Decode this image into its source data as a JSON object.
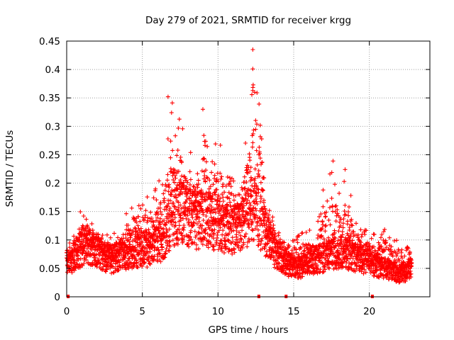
{
  "chart_data": {
    "type": "scatter",
    "title": "Day 279 of 2021, SRMTID for receiver krgg",
    "xlabel": "GPS time / hours",
    "ylabel": "SRMTID / TECUs",
    "xlim": [
      0,
      24
    ],
    "ylim": [
      0,
      0.45
    ],
    "xticks": [
      0,
      5,
      10,
      15,
      20
    ],
    "xtick_labels": [
      "0",
      "5",
      "10",
      "15",
      "20"
    ],
    "yticks": [
      0,
      0.05,
      0.1,
      0.15,
      0.2,
      0.25,
      0.3,
      0.35,
      0.4,
      0.45
    ],
    "ytick_labels": [
      "0",
      "0.05",
      "0.1",
      "0.15",
      "0.2",
      "0.25",
      "0.3",
      "0.35",
      "0.4",
      "0.45"
    ],
    "grid": true,
    "marker": "plus",
    "color": "#ff0000",
    "approximate_trend": {
      "description": "dense per-satellite SRMTID samples; estimated median level and upper envelope vs time",
      "x": [
        0.0,
        0.5,
        1.0,
        1.5,
        2.0,
        2.5,
        3.0,
        3.5,
        4.0,
        4.5,
        5.0,
        5.5,
        6.0,
        6.5,
        7.0,
        7.5,
        8.0,
        8.5,
        9.0,
        9.5,
        10.0,
        10.5,
        11.0,
        11.5,
        12.0,
        12.5,
        13.0,
        13.5,
        14.0,
        14.5,
        15.0,
        15.5,
        16.0,
        16.5,
        17.0,
        17.5,
        18.0,
        18.5,
        19.0,
        19.5,
        20.0,
        20.5,
        21.0,
        21.5,
        22.0,
        22.5,
        22.8
      ],
      "median": [
        0.06,
        0.07,
        0.085,
        0.09,
        0.08,
        0.07,
        0.065,
        0.07,
        0.075,
        0.08,
        0.085,
        0.08,
        0.09,
        0.11,
        0.14,
        0.15,
        0.14,
        0.13,
        0.14,
        0.13,
        0.13,
        0.12,
        0.12,
        0.12,
        0.14,
        0.15,
        0.12,
        0.09,
        0.07,
        0.06,
        0.05,
        0.05,
        0.06,
        0.065,
        0.07,
        0.075,
        0.08,
        0.075,
        0.07,
        0.065,
        0.06,
        0.055,
        0.05,
        0.045,
        0.04,
        0.045,
        0.05
      ],
      "envelope": [
        0.09,
        0.11,
        0.16,
        0.13,
        0.13,
        0.11,
        0.11,
        0.12,
        0.15,
        0.19,
        0.17,
        0.18,
        0.2,
        0.26,
        0.35,
        0.32,
        0.26,
        0.25,
        0.33,
        0.25,
        0.29,
        0.25,
        0.21,
        0.19,
        0.32,
        0.435,
        0.25,
        0.16,
        0.12,
        0.1,
        0.1,
        0.12,
        0.12,
        0.12,
        0.2,
        0.24,
        0.2,
        0.22,
        0.15,
        0.12,
        0.12,
        0.11,
        0.14,
        0.1,
        0.1,
        0.09,
        0.08
      ],
      "notable_points": [
        {
          "x": 12.3,
          "y": 0.435
        },
        {
          "x": 12.3,
          "y": 0.401
        },
        {
          "x": 12.3,
          "y": 0.363
        },
        {
          "x": 6.7,
          "y": 0.352
        },
        {
          "x": 9.0,
          "y": 0.33
        },
        {
          "x": 17.6,
          "y": 0.239
        },
        {
          "x": 18.4,
          "y": 0.224
        }
      ],
      "zero_value_markers_x": [
        0.1,
        12.7,
        14.5,
        20.2
      ]
    }
  }
}
